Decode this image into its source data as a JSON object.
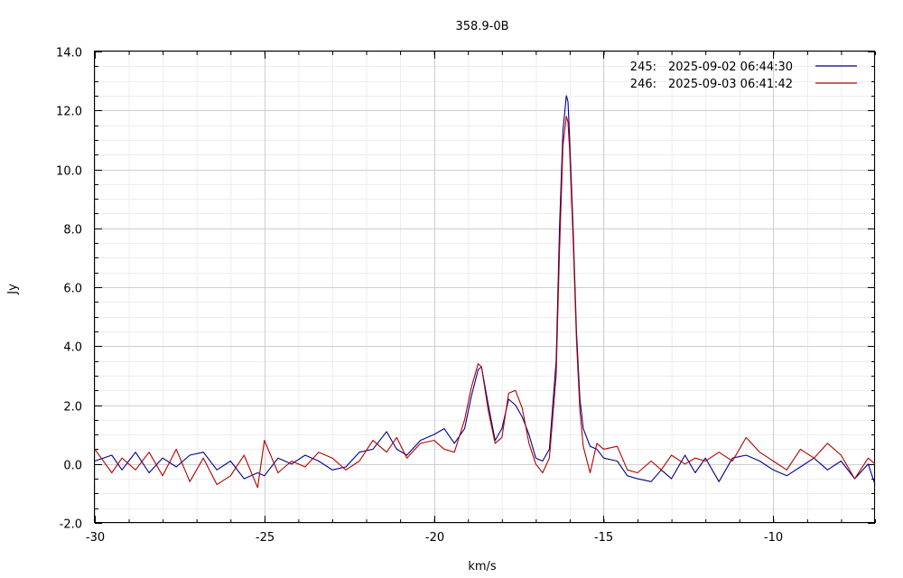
{
  "chart_data": {
    "type": "line",
    "title": "358.9-0B",
    "xlabel": "km/s",
    "ylabel": "Jy",
    "xlim": [
      -30,
      -7
    ],
    "ylim": [
      -2,
      14
    ],
    "xticks": [
      {
        "value": -30,
        "label": "-30"
      },
      {
        "value": -25,
        "label": "-25"
      },
      {
        "value": -20,
        "label": "-20"
      },
      {
        "value": -15,
        "label": "-15"
      },
      {
        "value": -10,
        "label": "-10"
      }
    ],
    "yticks": [
      {
        "value": -2,
        "label": "-2.0"
      },
      {
        "value": 0,
        "label": "0.0"
      },
      {
        "value": 2,
        "label": "2.0"
      },
      {
        "value": 4,
        "label": "4.0"
      },
      {
        "value": 6,
        "label": "6.0"
      },
      {
        "value": 8,
        "label": "8.0"
      },
      {
        "value": 10,
        "label": "10.0"
      },
      {
        "value": 12,
        "label": "12.0"
      },
      {
        "value": 14,
        "label": "14.0"
      }
    ],
    "grid": true,
    "legend_position": "top-right",
    "series": [
      {
        "id": "245",
        "label": "245:",
        "date": "2025-09-02 06:44:30",
        "color": "#00008b",
        "x": [
          -30.0,
          -29.5,
          -29.2,
          -28.8,
          -28.4,
          -28.0,
          -27.6,
          -27.2,
          -26.8,
          -26.4,
          -26.0,
          -25.6,
          -25.2,
          -25.0,
          -24.6,
          -24.2,
          -23.8,
          -23.4,
          -23.0,
          -22.6,
          -22.2,
          -21.8,
          -21.4,
          -21.1,
          -20.8,
          -20.4,
          -20.0,
          -19.7,
          -19.4,
          -19.1,
          -18.9,
          -18.7,
          -18.6,
          -18.4,
          -18.2,
          -18.0,
          -17.8,
          -17.6,
          -17.4,
          -17.2,
          -17.0,
          -16.8,
          -16.6,
          -16.4,
          -16.3,
          -16.2,
          -16.1,
          -16.05,
          -16.0,
          -15.9,
          -15.8,
          -15.7,
          -15.6,
          -15.4,
          -15.2,
          -15.0,
          -14.6,
          -14.3,
          -14.0,
          -13.6,
          -13.3,
          -13.0,
          -12.6,
          -12.3,
          -12.0,
          -11.6,
          -11.2,
          -10.8,
          -10.4,
          -10.0,
          -9.6,
          -9.2,
          -8.8,
          -8.4,
          -8.0,
          -7.6,
          -7.2,
          -7.0
        ],
        "y": [
          0.1,
          0.3,
          -0.2,
          0.4,
          -0.3,
          0.2,
          -0.1,
          0.3,
          0.4,
          -0.2,
          0.1,
          -0.5,
          -0.3,
          -0.4,
          0.2,
          0.0,
          0.3,
          0.1,
          -0.2,
          -0.1,
          0.4,
          0.5,
          1.1,
          0.5,
          0.3,
          0.8,
          1.0,
          1.2,
          0.7,
          1.2,
          2.3,
          3.2,
          3.3,
          2.0,
          0.8,
          1.2,
          2.2,
          2.0,
          1.6,
          1.0,
          0.2,
          0.1,
          0.5,
          3.5,
          8.0,
          11.3,
          12.5,
          12.3,
          11.0,
          8.0,
          4.5,
          2.2,
          1.2,
          0.6,
          0.5,
          0.2,
          0.1,
          -0.4,
          -0.5,
          -0.6,
          -0.2,
          -0.5,
          0.3,
          -0.3,
          0.2,
          -0.6,
          0.2,
          0.3,
          0.1,
          -0.2,
          -0.4,
          -0.1,
          0.2,
          -0.2,
          0.1,
          -0.5,
          0.0,
          -0.7
        ]
      },
      {
        "id": "246",
        "label": "246:",
        "date": "2025-09-03 06:41:42",
        "color": "#b30000",
        "x": [
          -30.0,
          -29.5,
          -29.2,
          -28.8,
          -28.4,
          -28.0,
          -27.6,
          -27.2,
          -26.8,
          -26.4,
          -26.0,
          -25.6,
          -25.2,
          -25.0,
          -24.6,
          -24.2,
          -23.8,
          -23.4,
          -23.0,
          -22.6,
          -22.2,
          -21.8,
          -21.4,
          -21.1,
          -20.8,
          -20.4,
          -20.0,
          -19.7,
          -19.4,
          -19.1,
          -18.9,
          -18.7,
          -18.6,
          -18.4,
          -18.2,
          -18.0,
          -17.8,
          -17.6,
          -17.4,
          -17.2,
          -17.0,
          -16.8,
          -16.6,
          -16.4,
          -16.3,
          -16.2,
          -16.1,
          -16.05,
          -16.0,
          -15.9,
          -15.8,
          -15.7,
          -15.6,
          -15.4,
          -15.2,
          -15.0,
          -14.6,
          -14.3,
          -14.0,
          -13.6,
          -13.3,
          -13.0,
          -12.6,
          -12.3,
          -12.0,
          -11.6,
          -11.2,
          -10.8,
          -10.4,
          -10.0,
          -9.6,
          -9.2,
          -8.8,
          -8.4,
          -8.0,
          -7.6,
          -7.2,
          -7.0
        ],
        "y": [
          0.5,
          -0.3,
          0.2,
          -0.2,
          0.4,
          -0.4,
          0.5,
          -0.6,
          0.2,
          -0.7,
          -0.4,
          0.3,
          -0.8,
          0.8,
          -0.3,
          0.1,
          -0.1,
          0.4,
          0.2,
          -0.2,
          0.1,
          0.8,
          0.4,
          0.9,
          0.2,
          0.7,
          0.8,
          0.5,
          0.4,
          1.5,
          2.6,
          3.4,
          3.3,
          1.8,
          0.7,
          0.9,
          2.4,
          2.5,
          1.9,
          0.7,
          0.0,
          -0.3,
          0.2,
          3.0,
          7.2,
          10.8,
          11.8,
          11.6,
          10.6,
          7.6,
          4.2,
          1.8,
          0.6,
          -0.3,
          0.7,
          0.5,
          0.6,
          -0.2,
          -0.3,
          0.1,
          -0.2,
          0.3,
          0.0,
          0.2,
          0.1,
          0.4,
          0.1,
          0.9,
          0.4,
          0.1,
          -0.2,
          0.5,
          0.2,
          0.7,
          0.3,
          -0.5,
          0.2,
          0.0
        ]
      }
    ]
  }
}
